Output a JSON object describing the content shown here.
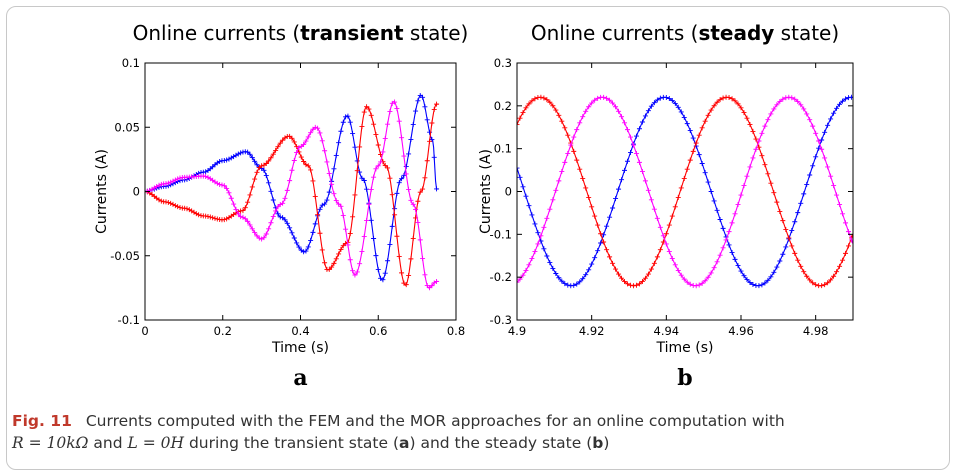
{
  "chart_data": [
    {
      "type": "line",
      "title_parts": [
        "Online currents (",
        "transient",
        " state)"
      ],
      "panel_label": "a",
      "xlabel": "Time (s)",
      "ylabel": "Currents (A)",
      "xlim": [
        0,
        0.8
      ],
      "ylim": [
        -0.1,
        0.1
      ],
      "x_ticks": [
        "0",
        "0.2",
        "0.4",
        "0.6",
        "0.8"
      ],
      "y_ticks": [
        "-0.1",
        "-0.05",
        "0",
        "0.05",
        "0.1"
      ],
      "x_tick_values": [
        0,
        0.2,
        0.4,
        0.6,
        0.8
      ],
      "y_tick_values": [
        -0.1,
        -0.05,
        0,
        0.05,
        0.1
      ],
      "grid": false,
      "series": [
        {
          "color": "#0000ff",
          "x": [
            0,
            0.05,
            0.1,
            0.15,
            0.2,
            0.26,
            0.3,
            0.35,
            0.41,
            0.46,
            0.52,
            0.56,
            0.61,
            0.66,
            0.71,
            0.74,
            0.75
          ],
          "y": [
            0,
            0.004,
            0.009,
            0.015,
            0.024,
            0.031,
            0.018,
            -0.02,
            -0.047,
            -0.01,
            0.059,
            0.01,
            -0.069,
            0.01,
            0.075,
            0.04,
            0.002
          ]
        },
        {
          "color": "#ff0000",
          "x": [
            0,
            0.05,
            0.1,
            0.15,
            0.2,
            0.25,
            0.3,
            0.37,
            0.42,
            0.47,
            0.52,
            0.57,
            0.62,
            0.67,
            0.71,
            0.75
          ],
          "y": [
            0,
            -0.008,
            -0.013,
            -0.019,
            -0.022,
            -0.015,
            0.02,
            0.043,
            0.02,
            -0.061,
            -0.04,
            0.066,
            0.02,
            -0.073,
            0.0,
            0.068
          ]
        },
        {
          "color": "#ff00ff",
          "x": [
            0,
            0.05,
            0.1,
            0.15,
            0.2,
            0.25,
            0.3,
            0.35,
            0.4,
            0.44,
            0.5,
            0.54,
            0.6,
            0.64,
            0.69,
            0.73,
            0.75
          ],
          "y": [
            0,
            0.006,
            0.011,
            0.012,
            0.005,
            -0.02,
            -0.037,
            -0.01,
            0.035,
            0.05,
            -0.01,
            -0.065,
            0.02,
            0.07,
            -0.01,
            -0.075,
            -0.07
          ]
        }
      ]
    },
    {
      "type": "line",
      "title_parts": [
        "Online currents (",
        "steady",
        " state)"
      ],
      "panel_label": "b",
      "xlabel": "Time (s)",
      "ylabel": "Currents (A)",
      "xlim": [
        4.9,
        4.99
      ],
      "ylim": [
        -0.3,
        0.3
      ],
      "x_ticks": [
        "4.9",
        "4.92",
        "4.94",
        "4.96",
        "4.98"
      ],
      "y_ticks": [
        "-0.3",
        "-0.2",
        "-0.1",
        "0",
        "0.1",
        "0.2",
        "0.3"
      ],
      "x_tick_values": [
        4.9,
        4.92,
        4.94,
        4.96,
        4.98
      ],
      "y_tick_values": [
        -0.3,
        -0.2,
        -0.1,
        0,
        0.1,
        0.2,
        0.3
      ],
      "grid": false,
      "waves": [
        {
          "color": "#0000ff",
          "amplitude": 0.22,
          "period": 0.05,
          "peak_time": 4.9395
        },
        {
          "color": "#ff0000",
          "amplitude": 0.22,
          "period": 0.05,
          "peak_time": 4.9562
        },
        {
          "color": "#ff00ff",
          "amplitude": 0.22,
          "period": 0.05,
          "peak_time": 4.9228
        }
      ]
    }
  ],
  "caption": {
    "label": "Fig. 11",
    "line1": "Currents computed with the FEM and the MOR approaches for an online computation with",
    "math1": "R = 10kΩ",
    "mid1": " and ",
    "math2": "L = 0H",
    "mid2": " during the transient state (",
    "ref_a": "a",
    "mid3": ") and the steady state (",
    "ref_b": "b",
    "end": ")"
  }
}
